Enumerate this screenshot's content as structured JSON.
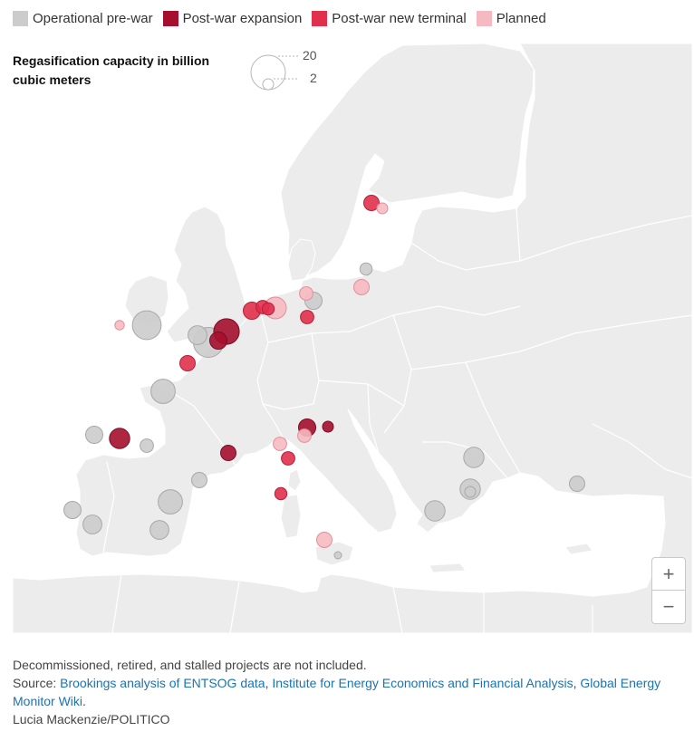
{
  "legend": {
    "items": [
      {
        "label": "Operational pre-war",
        "color": "#cccccc"
      },
      {
        "label": "Post-war expansion",
        "color": "#a50f2d"
      },
      {
        "label": "Post-war new terminal",
        "color": "#e0304c"
      },
      {
        "label": "Planned",
        "color": "#f7b9c1"
      }
    ]
  },
  "size_key": {
    "title": "Regasification capacity in billion cubic meters",
    "large_value": "20",
    "small_value": "2"
  },
  "map": {
    "land_color": "#ececec",
    "border_color": "#ffffff",
    "sea_color": "#ffffff",
    "terminals": [
      {
        "status": "Operational pre-war",
        "capacity": 2.5
      },
      {
        "status": "Operational pre-war",
        "capacity": 14
      },
      {
        "status": "Operational pre-war",
        "capacity": 6
      },
      {
        "status": "Operational pre-war",
        "capacity": 15
      },
      {
        "status": "Operational pre-war",
        "capacity": 10
      },
      {
        "status": "Operational pre-war",
        "capacity": 5
      },
      {
        "status": "Operational pre-war",
        "capacity": 3
      },
      {
        "status": "Operational pre-war",
        "capacity": 4
      },
      {
        "status": "Operational pre-war",
        "capacity": 10
      },
      {
        "status": "Operational pre-war",
        "capacity": 5
      },
      {
        "status": "Operational pre-war",
        "capacity": 6
      },
      {
        "status": "Operational pre-war",
        "capacity": 6
      },
      {
        "status": "Operational pre-war",
        "capacity": 7
      },
      {
        "status": "Operational pre-war",
        "capacity": 2
      },
      {
        "status": "Operational pre-war",
        "capacity": 7
      },
      {
        "status": "Operational pre-war",
        "capacity": 7
      },
      {
        "status": "Operational pre-war",
        "capacity": 4
      },
      {
        "status": "Operational pre-war",
        "capacity": 5
      },
      {
        "status": "Operational pre-war",
        "capacity": 0.5
      },
      {
        "status": "Post-war expansion",
        "capacity": 11
      },
      {
        "status": "Post-war expansion",
        "capacity": 5
      },
      {
        "status": "Post-war expansion",
        "capacity": 7
      },
      {
        "status": "Post-war expansion",
        "capacity": 4
      },
      {
        "status": "Post-war expansion",
        "capacity": 5
      },
      {
        "status": "Post-war expansion",
        "capacity": 2
      },
      {
        "status": "Post-war new terminal",
        "capacity": 5
      },
      {
        "status": "Post-war new terminal",
        "capacity": 4
      },
      {
        "status": "Post-war new terminal",
        "capacity": 2.5
      },
      {
        "status": "Post-war new terminal",
        "capacity": 3
      },
      {
        "status": "Post-war new terminal",
        "capacity": 3
      },
      {
        "status": "Post-war new terminal",
        "capacity": 3
      },
      {
        "status": "Post-war new terminal",
        "capacity": 4
      },
      {
        "status": "Post-war new terminal",
        "capacity": 2.5
      },
      {
        "status": "Planned",
        "capacity": 8
      },
      {
        "status": "Planned",
        "capacity": 4
      },
      {
        "status": "Planned",
        "capacity": 2
      },
      {
        "status": "Planned",
        "capacity": 3
      },
      {
        "status": "Planned",
        "capacity": 3
      },
      {
        "status": "Planned",
        "capacity": 3
      },
      {
        "status": "Planned",
        "capacity": 4
      },
      {
        "status": "Planned",
        "capacity": 1.5
      }
    ]
  },
  "zoom": {
    "in_label": "+",
    "out_label": "−"
  },
  "footer": {
    "note": "Decommissioned, retired, and stalled projects are not included.",
    "source_prefix": "Source: ",
    "source_link_1": "Brookings analysis of ENTSOG data",
    "sep_1": ", ",
    "source_link_2": "Institute for Energy Economics and Financial Analysis",
    "sep_2": ", ",
    "source_link_3": "Global Energy Monitor Wiki",
    "source_end": ".",
    "credit": "Lucia Mackenzie/POLITICO"
  }
}
